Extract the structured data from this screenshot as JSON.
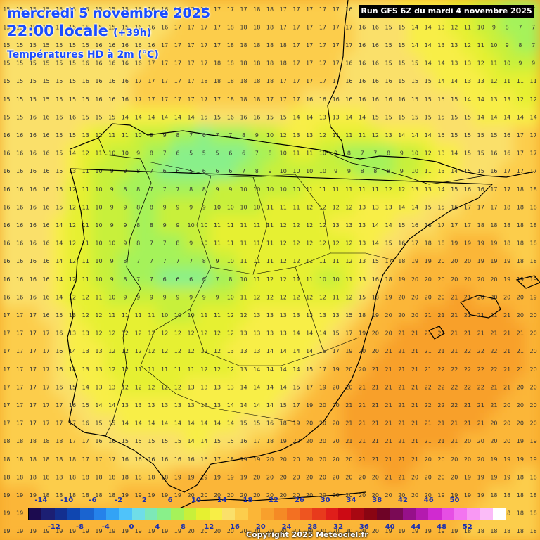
{
  "header": {
    "date": "mercredi 5 novembre 2025",
    "time": "22:00 locale",
    "lead": "(+39h)",
    "layer": "Températures HD à 2m (°C)",
    "run": "Run GFS 6Z du mardi 4 novembre 2025"
  },
  "footer": {
    "copyright": "Copyright 2025 Meteociel.fr"
  },
  "map": {
    "region": "Iberian Peninsula",
    "value_unit": "°C",
    "grid_rows": [
      "15 15 15 15 15 15 15 15 15 15 16 16 16 16 17 17 17 17 17 18 18 17 17 17 17 17 16 16 15 15 14 14 14 13 12 11 9 9 8 8 7",
      "15 15 15 15 15 15 15 15 15 15 16 16 16 17 17 17 17 18 18 18 18 17 17 17 17 17 17 16 16 15 15 14 14 13 12 11 10 9 8 7 7",
      "15 15 15 15 15 15 15 16 16 16 16 16 17 17 17 17 17 18 18 18 18 18 17 17 17 17 17 16 16 15 15 14 14 13 13 12 11 10 9 8 7",
      "15 15 15 15 15 15 16 16 16 16 16 17 17 17 17 17 18 18 18 18 18 18 17 17 17 17 16 16 16 15 15 15 14 14 13 13 12 11 10 9 9",
      "15 15 15 15 15 15 16 16 16 16 17 17 17 17 17 18 18 18 18 18 18 17 17 17 17 17 16 16 16 16 15 15 15 14 14 13 13 12 11 11 11",
      "15 15 15 15 15 15 15 16 16 16 17 17 17 17 17 17 17 18 18 18 17 17 17 16 16 16 16 16 16 16 16 15 15 15 15 14 14 13 13 12 12",
      "15 15 16 16 16 16 15 15 15 14 14 14 14 14 14 15 15 16 16 16 15 15 14 14 13 13 14 14 15 15 15 15 15 15 15 15 14 14 14 14 14",
      "16 16 16 16 15 15 13 12 11 11 10 9 9 8 7 6 7 7 8 9 10 12 13 13 12 11 11 11 12 13 14 14 14 15 15 15 15 15 16 17 17",
      "16 16 16 16 15 14 12 11 10 10 9 8 7 6 5 5 5 6 6 7 8 10 11 11 10 9 8 7 7 8 9 10 12 13 14 15 15 16 16 17 17",
      "16 16 16 16 15 13 11 10 9 9 8 7 6 6 5 6 6 6 7 8 9 10 10 10 10 9 9 8 8 8 9 10 11 13 14 15 15 16 17 17 17",
      "16 16 16 16 15 12 11 10 9 8 8 7 7 7 8 8 9 9 10 10 10 10 10 11 11 11 11 11 11 12 12 13 13 14 15 16 16 17 17 18 18",
      "16 16 16 16 15 12 11 10 9 9 8 8 9 9 9 9 10 10 10 10 11 11 11 12 12 12 12 13 13 13 14 14 15 15 16 17 17 17 18 18 18",
      "16 16 16 16 14 12 11 10 9 9 8 8 9 9 10 10 11 11 11 11 11 12 12 12 12 13 13 13 14 14 15 16 16 17 17 17 18 18 18 18 18",
      "16 16 16 16 14 12 11 10 10 9 8 7 7 8 9 10 11 11 11 11 11 12 12 12 12 12 12 13 14 15 16 17 18 18 19 19 19 19 18 18 18",
      "16 16 16 16 14 12 11 10 9 8 7 7 7 7 7 8 9 10 11 11 11 12 12 11 11 11 12 13 15 17 18 19 19 20 20 20 19 19 19 18 18",
      "16 16 16 16 14 12 11 10 9 8 7 7 6 6 6 6 7 8 10 11 12 12 11 11 10 10 11 13 16 18 19 20 20 20 20 20 20 20 19 19 19",
      "16 16 16 16 14 12 12 11 10 9 9 9 9 9 9 9 9 10 11 12 12 12 12 12 12 11 12 15 18 19 20 20 20 20 21 21 20 20 20 20 19",
      "17 17 17 16 15 13 12 12 11 11 11 11 10 10 10 11 11 12 12 13 13 13 13 13 13 13 15 18 19 20 20 20 21 21 21 21 21 21 21 20 20",
      "17 17 17 17 16 13 13 12 12 12 12 12 12 12 12 12 12 12 13 13 13 13 14 14 14 15 17 19 20 20 21 21 21 21 21 21 21 21 21 21 20",
      "17 17 17 17 16 14 13 13 12 12 12 12 12 12 12 12 12 13 13 13 14 14 14 14 15 17 19 20 20 21 21 21 21 21 21 22 22 22 21 21 20",
      "17 17 17 17 16 14 13 13 12 12 11 11 11 11 11 12 12 12 13 14 14 14 14 15 17 19 20 20 21 21 21 21 21 22 22 22 22 22 21 21 20",
      "17 17 17 17 16 15 14 13 13 12 12 12 12 12 13 13 13 13 14 14 14 14 15 17 19 20 20 21 21 21 21 21 22 22 22 22 22 21 21 20 20",
      "17 17 17 17 17 16 15 14 14 13 13 13 13 13 13 13 13 14 14 14 14 15 17 19 20 20 21 21 21 21 21 21 22 22 22 21 21 21 20 20 20",
      "17 17 17 17 17 17 16 15 15 14 14 14 14 14 14 14 14 14 15 15 16 18 19 20 20 20 21 21 21 21 21 21 21 21 21 21 21 20 20 20 20",
      "18 18 18 18 18 17 17 16 16 15 15 15 15 15 14 14 15 15 16 17 18 19 20 20 20 20 21 21 21 21 21 21 21 21 21 20 20 20 20 19 19",
      "18 18 18 18 18 18 17 17 17 16 16 16 16 16 16 16 17 18 19 19 20 20 20 20 20 20 20 21 21 21 21 21 20 20 20 20 20 19 19 19 19",
      "18 18 18 18 18 18 18 18 18 18 18 18 18 19 19 19 19 19 19 20 20 20 20 20 20 20 20 20 20 21 21 20 20 20 20 19 19 19 19 18 18",
      "19 19 19 18 18 18 18 18 18 19 19 19 19 19 20 20 20 20 20 20 20 20 20 20 20 20 20 20 20 20 20 20 20 19 19 19 19 18 18 18 18",
      "19 19 19 19 19 19 19 19 19 19 19 19 19 20 20 20 20 20 20 20 20 20 20 20 20 20 20 20 20 20 20 19 19 19 19 19 18 18 18 18 18",
      "19 19 19 19 19 19 19 19 19 19 19 19 19 19 20 20 20 20 20 20 20 20 20 20 20 20 20 20 20 19 19 19 19 19 19 18 18 18 18 18 18"
    ]
  },
  "legend": {
    "colors": [
      "#1c0b4f",
      "#1c1f73",
      "#132f8f",
      "#0f46b0",
      "#1a64d0",
      "#2582ea",
      "#33a3f5",
      "#4fc3fa",
      "#6fdde8",
      "#7de8b8",
      "#89f08a",
      "#a5f25a",
      "#c8f03a",
      "#e6f030",
      "#f8ee46",
      "#fae06a",
      "#fccd4c",
      "#fbb637",
      "#f8a02c",
      "#f58a25",
      "#f37022",
      "#ee5520",
      "#e83a1c",
      "#e01e1a",
      "#cc0a14",
      "#a80812",
      "#8a0512",
      "#6e0326",
      "#7a0a55",
      "#96108a",
      "#b41aaf",
      "#d02ad0",
      "#e64ee4",
      "#f374f0",
      "#f998f4",
      "#fbbcf8",
      "#ffffff"
    ],
    "labels_top": [
      "-14",
      "-10",
      "-6",
      "-2",
      "2",
      "6",
      "10",
      "14",
      "18",
      "22",
      "26",
      "30",
      "34",
      "38",
      "42",
      "46",
      "50"
    ],
    "labels_bottom": [
      "-12",
      "-8",
      "-4",
      "0",
      "4",
      "8",
      "12",
      "16",
      "20",
      "24",
      "28",
      "32",
      "36",
      "40",
      "44",
      "48",
      "52"
    ]
  }
}
